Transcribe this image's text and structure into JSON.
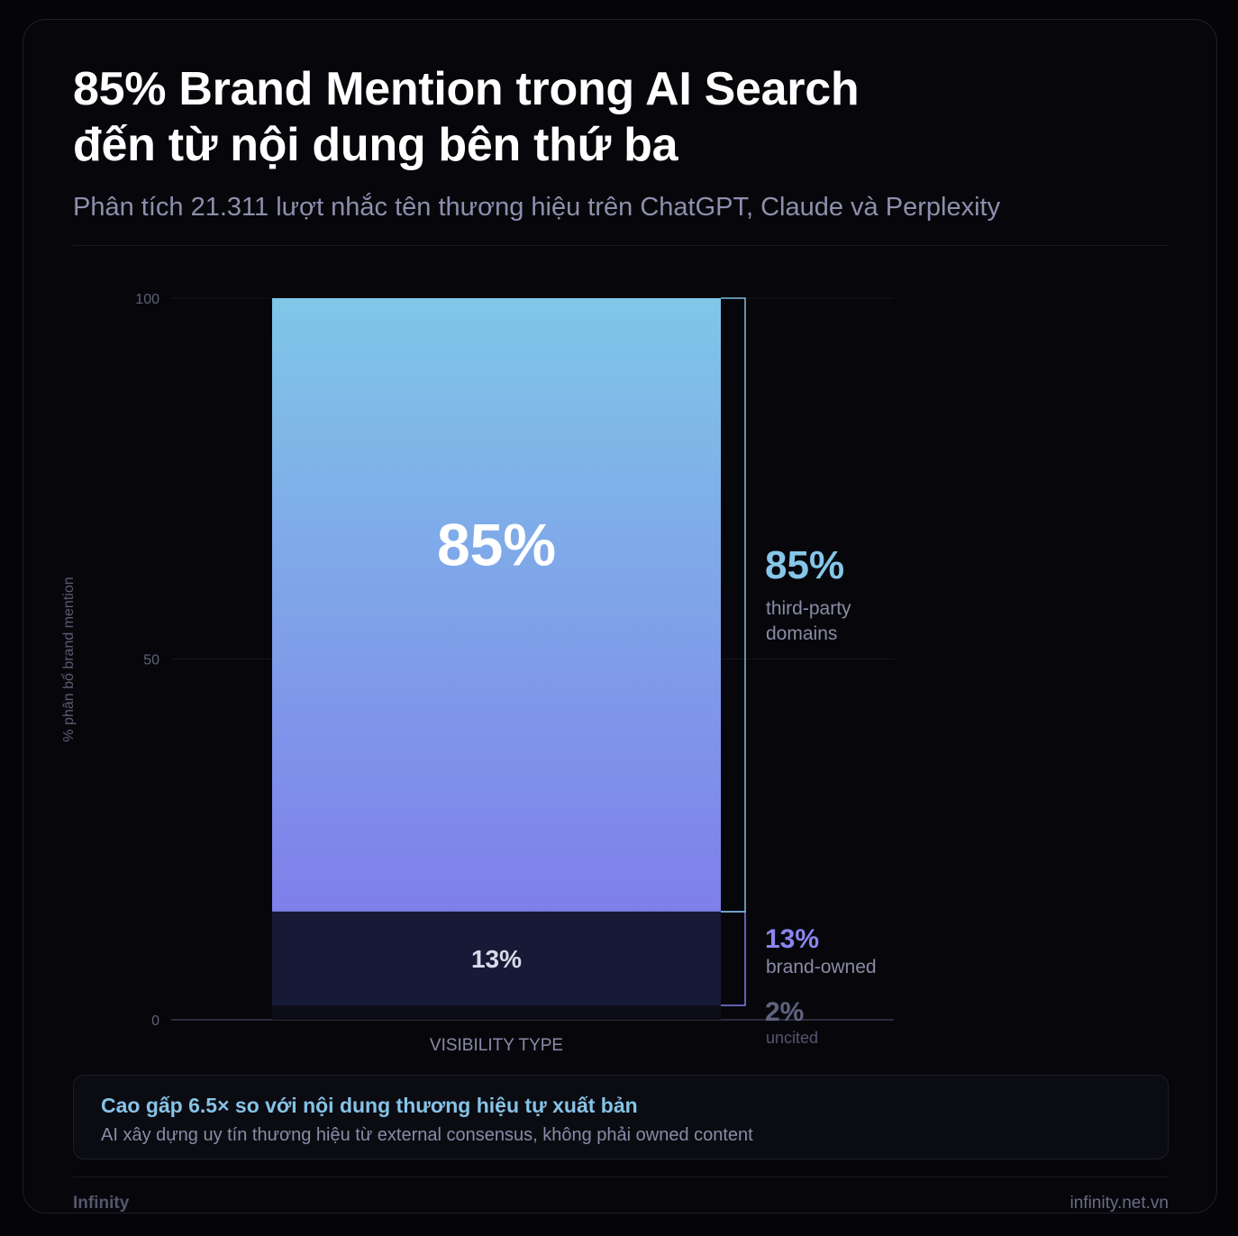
{
  "header": {
    "title_line1": "85% Brand Mention trong AI Search",
    "title_line2": "đến từ nội dung bên thứ ba",
    "subtitle": "Phân tích 21.311 lượt nhắc tên thương hiệu trên ChatGPT, Claude và Perplexity"
  },
  "chart_data": {
    "type": "bar",
    "stacked": true,
    "xlabel": "VISIBILITY TYPE",
    "ylabel": "% phân bổ brand mention",
    "ylim": [
      0,
      100
    ],
    "yticks": [
      0,
      50,
      100
    ],
    "grid": true,
    "series": [
      {
        "name": "uncited",
        "value": 2,
        "bar_label": "",
        "side_value_label": "2%",
        "side_label_lines": [
          "uncited"
        ],
        "color": "#0d0e17",
        "label_color": "#5f6380"
      },
      {
        "name": "brand-owned",
        "value": 13,
        "bar_label": "13%",
        "side_value_label": "13%",
        "side_label_lines": [
          "brand-owned"
        ],
        "color": "#171a36",
        "label_color": "#8b85f0"
      },
      {
        "name": "third-party domains",
        "value": 85,
        "bar_label": "85%",
        "side_value_label": "85%",
        "side_label_lines": [
          "third-party",
          "domains"
        ],
        "gradient": [
          "#7fc7e8",
          "#7f7fea"
        ],
        "label_color": "#86c6e8"
      }
    ]
  },
  "callout": {
    "title": "Cao gấp 6.5× so với nội dung thương hiệu tự xuất bản",
    "text": "AI xây dựng uy tín thương hiệu từ external consensus, không phải owned content"
  },
  "footer": {
    "brand": "Infinity",
    "url": "infinity.net.vn"
  }
}
